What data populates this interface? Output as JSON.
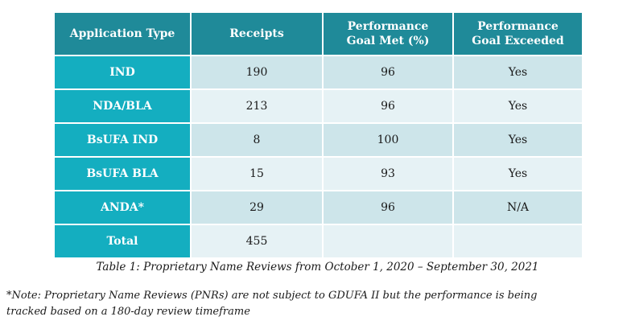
{
  "table": {
    "headers": [
      "Application Type",
      "Receipts",
      "Performance Goal Met (%)",
      "Performance Goal Exceeded"
    ],
    "rows": [
      [
        "IND",
        "190",
        "96",
        "Yes"
      ],
      [
        "NDA/BLA",
        "213",
        "96",
        "Yes"
      ],
      [
        "BsUFA IND",
        "8",
        "100",
        "Yes"
      ],
      [
        "BsUFA BLA",
        "15",
        "93",
        "Yes"
      ],
      [
        "ANDA*",
        "29",
        "96",
        "N/A"
      ],
      [
        "Total",
        "455",
        "",
        ""
      ]
    ]
  },
  "caption": "Table 1: Proprietary Name Reviews from October 1, 2020 – September 30, 2021",
  "note": "*Note: Proprietary Name Reviews (PNRs) are not subject to GDUFA II but the performance is being tracked based on a 180-day review timeframe",
  "colors": {
    "header_bg": "#1f8a99",
    "row_header_bg": "#14aec0",
    "cell_bg_odd": "#cde5ea",
    "cell_bg_even": "#e6f2f5"
  }
}
